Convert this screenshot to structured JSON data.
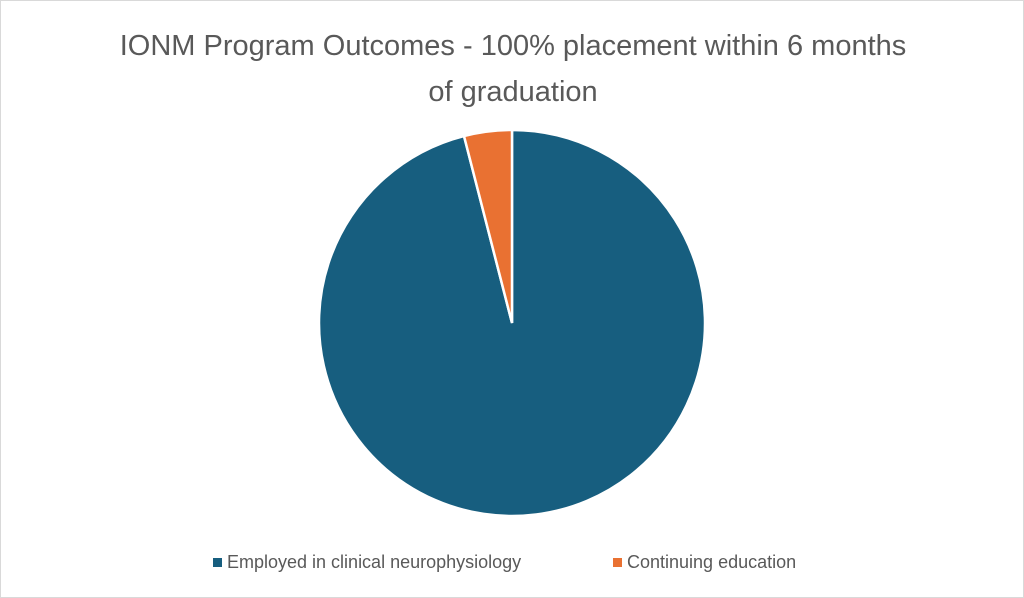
{
  "chart_data": {
    "type": "pie",
    "title": "IONM Program Outcomes - 100% placement within 6 months of graduation",
    "categories": [
      "Employed in clinical neurophysiology",
      "Continuing education"
    ],
    "values": [
      96,
      4
    ],
    "colors": [
      "#175e7f",
      "#e97132"
    ]
  }
}
